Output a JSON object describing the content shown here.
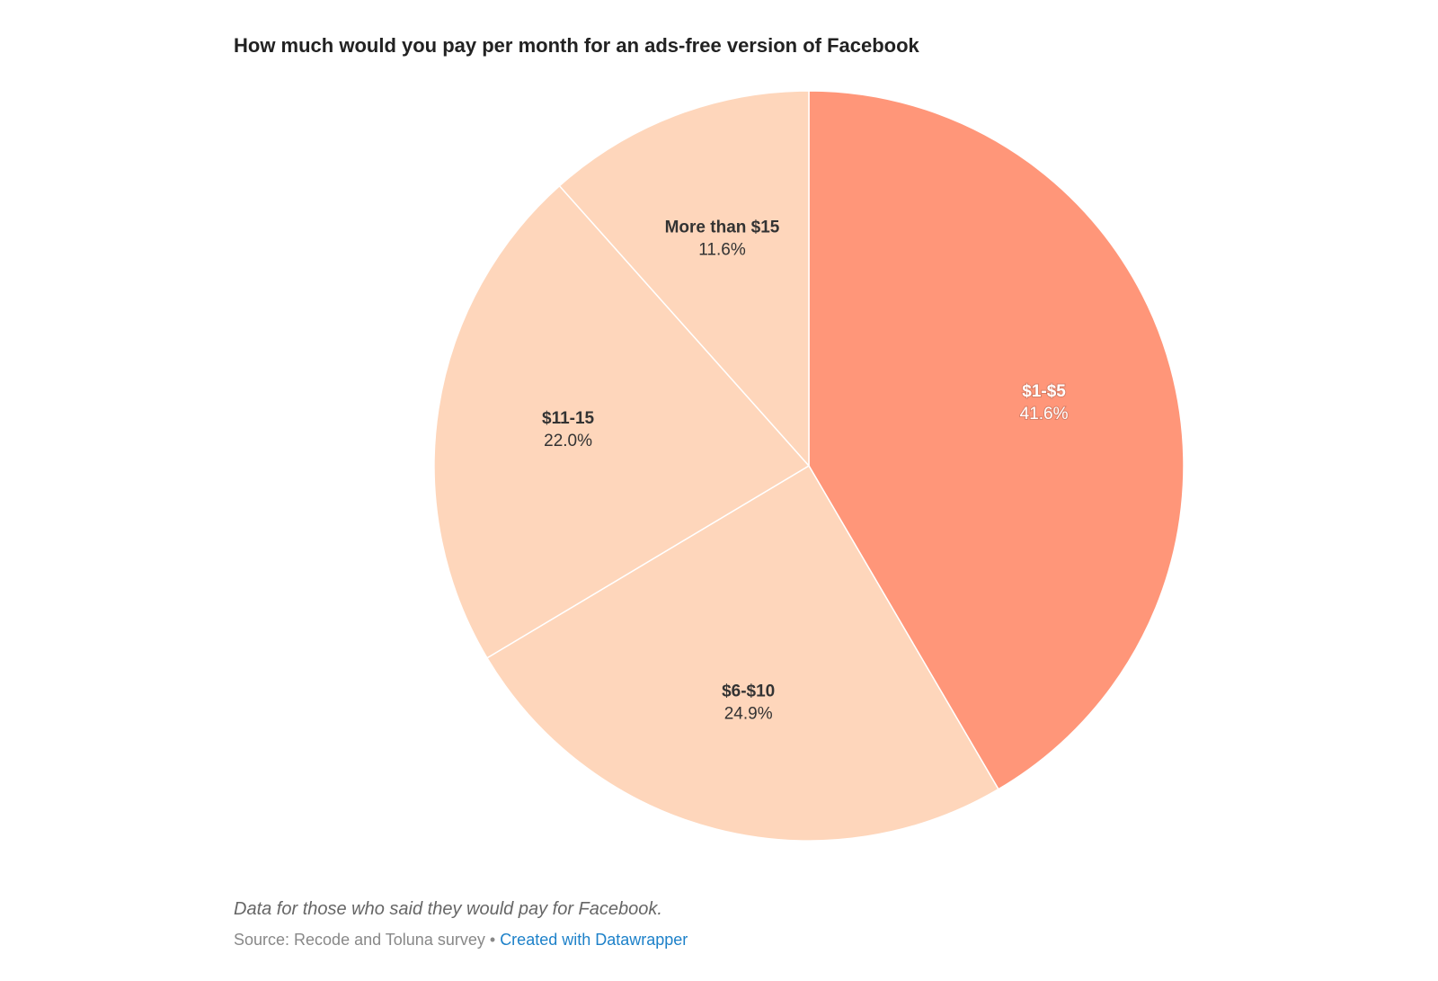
{
  "chart_data": {
    "type": "pie",
    "title": "How much would you pay per month for an ads-free version of Facebook",
    "slices": [
      {
        "label": "$1-$5",
        "value": 41.6,
        "value_label": "41.6%",
        "color": "#ff9679",
        "text_color": "#ffffff"
      },
      {
        "label": "$6-$10",
        "value": 24.9,
        "value_label": "24.9%",
        "color": "#fed6bb",
        "text_color": "#333333"
      },
      {
        "label": "$11-15",
        "value": 22.0,
        "value_label": "22.0%",
        "color": "#fed6bb",
        "text_color": "#333333"
      },
      {
        "label": "More than $15",
        "value": 11.6,
        "value_label": "11.6%",
        "color": "#fed6bb",
        "text_color": "#333333"
      }
    ]
  },
  "notes": "Data for those who said they would pay for Facebook.",
  "source": "Source: Recode and Toluna survey",
  "separator": "•",
  "credit": "Created with Datawrapper"
}
